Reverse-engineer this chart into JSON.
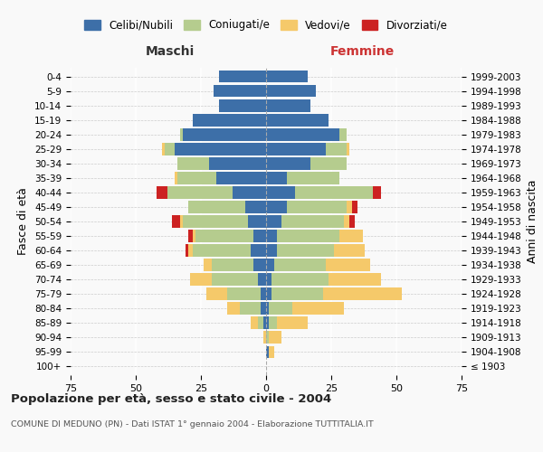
{
  "age_groups": [
    "100+",
    "95-99",
    "90-94",
    "85-89",
    "80-84",
    "75-79",
    "70-74",
    "65-69",
    "60-64",
    "55-59",
    "50-54",
    "45-49",
    "40-44",
    "35-39",
    "30-34",
    "25-29",
    "20-24",
    "15-19",
    "10-14",
    "5-9",
    "0-4"
  ],
  "birth_years": [
    "≤ 1903",
    "1904-1908",
    "1909-1913",
    "1914-1918",
    "1919-1923",
    "1924-1928",
    "1929-1933",
    "1934-1938",
    "1939-1943",
    "1944-1948",
    "1949-1953",
    "1954-1958",
    "1959-1963",
    "1964-1968",
    "1969-1973",
    "1974-1978",
    "1979-1983",
    "1984-1988",
    "1989-1993",
    "1994-1998",
    "1999-2003"
  ],
  "colors": {
    "celibi": "#3d6fa8",
    "coniugati": "#b5cc8e",
    "vedovi": "#f5c96a",
    "divorziati": "#cc2222"
  },
  "males": {
    "celibi": [
      0,
      0,
      0,
      1,
      2,
      2,
      3,
      5,
      6,
      5,
      7,
      8,
      13,
      19,
      22,
      35,
      32,
      28,
      18,
      20,
      18
    ],
    "coniugati": [
      0,
      0,
      0,
      2,
      8,
      13,
      18,
      16,
      22,
      22,
      25,
      22,
      25,
      15,
      12,
      4,
      1,
      0,
      0,
      0,
      0
    ],
    "vedovi": [
      0,
      0,
      1,
      3,
      5,
      8,
      8,
      3,
      2,
      1,
      1,
      0,
      0,
      1,
      0,
      1,
      0,
      0,
      0,
      0,
      0
    ],
    "divorziati": [
      0,
      0,
      0,
      0,
      0,
      0,
      0,
      0,
      1,
      2,
      3,
      0,
      4,
      0,
      0,
      0,
      0,
      0,
      0,
      0,
      0
    ]
  },
  "females": {
    "celibi": [
      0,
      1,
      0,
      1,
      1,
      2,
      2,
      3,
      4,
      4,
      6,
      8,
      11,
      8,
      17,
      23,
      28,
      24,
      17,
      19,
      16
    ],
    "coniugati": [
      0,
      0,
      1,
      3,
      9,
      20,
      22,
      20,
      22,
      24,
      24,
      23,
      30,
      20,
      14,
      8,
      3,
      0,
      0,
      0,
      0
    ],
    "vedovi": [
      0,
      2,
      5,
      12,
      20,
      30,
      20,
      17,
      12,
      9,
      2,
      2,
      0,
      0,
      0,
      1,
      0,
      0,
      0,
      0,
      0
    ],
    "divorziati": [
      0,
      0,
      0,
      0,
      0,
      0,
      0,
      0,
      0,
      0,
      2,
      2,
      3,
      0,
      0,
      0,
      0,
      0,
      0,
      0,
      0
    ]
  },
  "title": "Popolazione per età, sesso e stato civile - 2004",
  "subtitle": "COMUNE DI MEDUNO (PN) - Dati ISTAT 1° gennaio 2004 - Elaborazione TUTTITALIA.IT",
  "xlabel_left": "Maschi",
  "xlabel_right": "Femmine",
  "ylabel_left": "Fasce di età",
  "ylabel_right": "Anni di nascita",
  "xlim": 75,
  "legend_labels": [
    "Celibi/Nubili",
    "Coniugati/e",
    "Vedovi/e",
    "Divorziati/e"
  ],
  "bg_color": "#f9f9f9",
  "bar_height": 0.85
}
